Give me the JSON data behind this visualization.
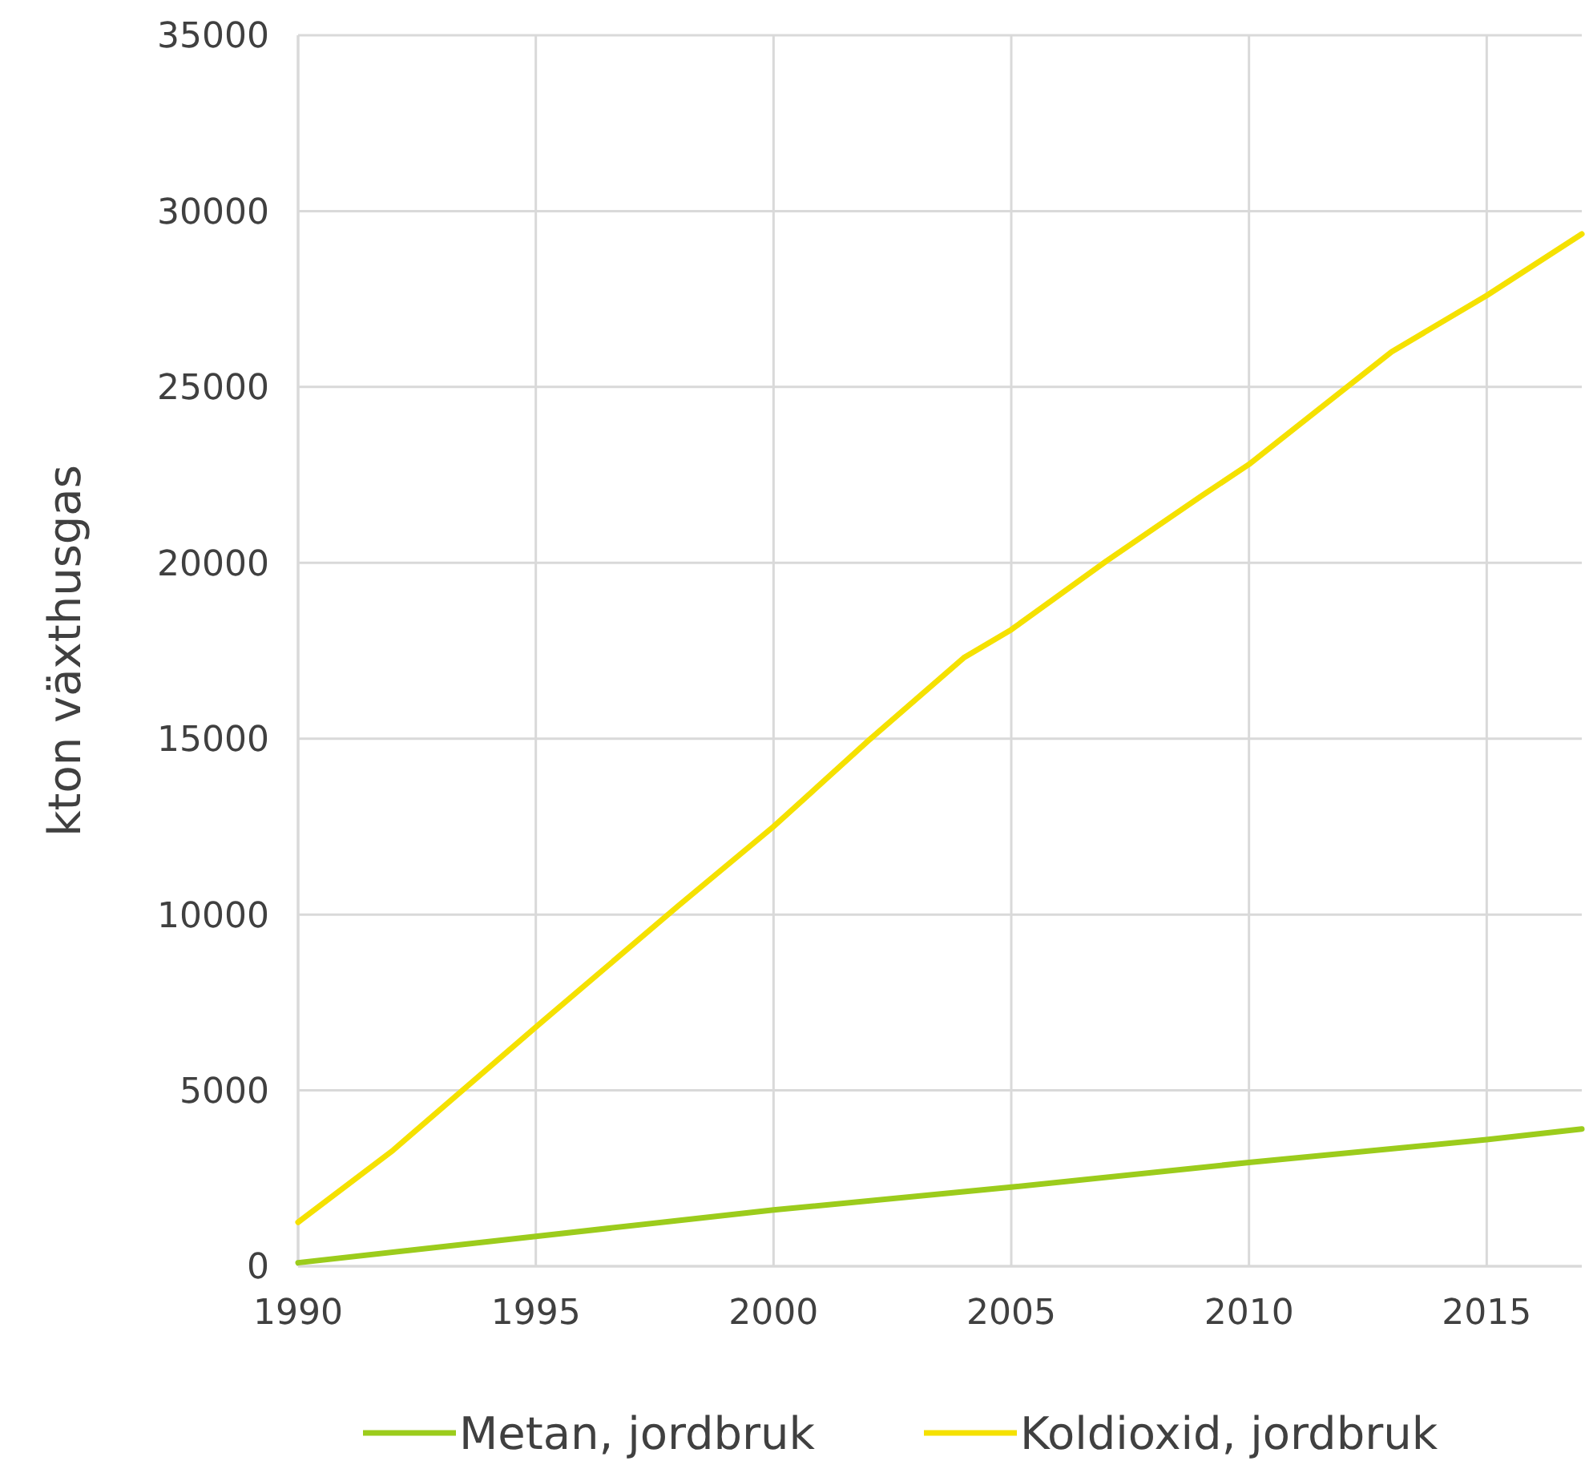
{
  "chart_data": {
    "type": "line",
    "ylabel": "kton växthusgas",
    "xlim": [
      1990,
      2017
    ],
    "xticks": [
      1990,
      1995,
      2000,
      2005,
      2010,
      2015
    ],
    "ylim": [
      0,
      35000
    ],
    "yticks": [
      0,
      5000,
      10000,
      15000,
      20000,
      25000,
      30000,
      35000
    ],
    "grid": true,
    "legend": "bottom",
    "marker": "none",
    "line_style": "solid",
    "series": [
      {
        "name": "Metan, jordbruk",
        "color": "#9ccc1c",
        "x": [
          1990,
          1995,
          2000,
          2005,
          2010,
          2015,
          2017
        ],
        "values": [
          100,
          850,
          1600,
          2250,
          2950,
          3600,
          3900
        ]
      },
      {
        "name": "Koldioxid, jordbruk",
        "color": "#f5e100",
        "x": [
          1990,
          1992,
          1995,
          1998,
          2000,
          2002,
          2004,
          2005,
          2007,
          2009,
          2010,
          2013,
          2015,
          2017
        ],
        "values": [
          1250,
          3300,
          6800,
          10250,
          12500,
          14950,
          17300,
          18100,
          20050,
          21900,
          22800,
          26000,
          27600,
          29350
        ]
      }
    ]
  }
}
